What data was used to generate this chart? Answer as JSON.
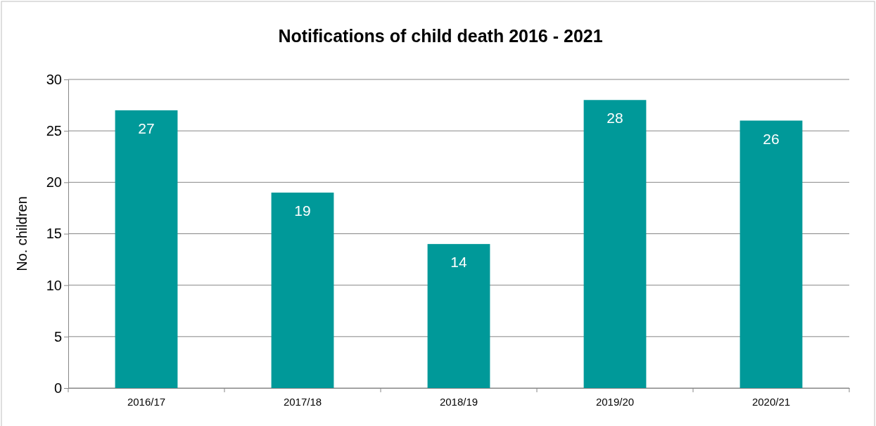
{
  "chart_data": {
    "type": "bar",
    "title": "Notifications of child death 2016 - 2021",
    "ylabel": "No. children",
    "categories": [
      "2016/17",
      "2017/18",
      "2018/19",
      "2019/20",
      "2020/21"
    ],
    "values": [
      27,
      19,
      14,
      28,
      26
    ],
    "color": "#009999",
    "ylim": [
      0,
      30
    ],
    "yticks": [
      0,
      5,
      10,
      15,
      20,
      25,
      30
    ],
    "grid": "y",
    "data_labels": true
  }
}
